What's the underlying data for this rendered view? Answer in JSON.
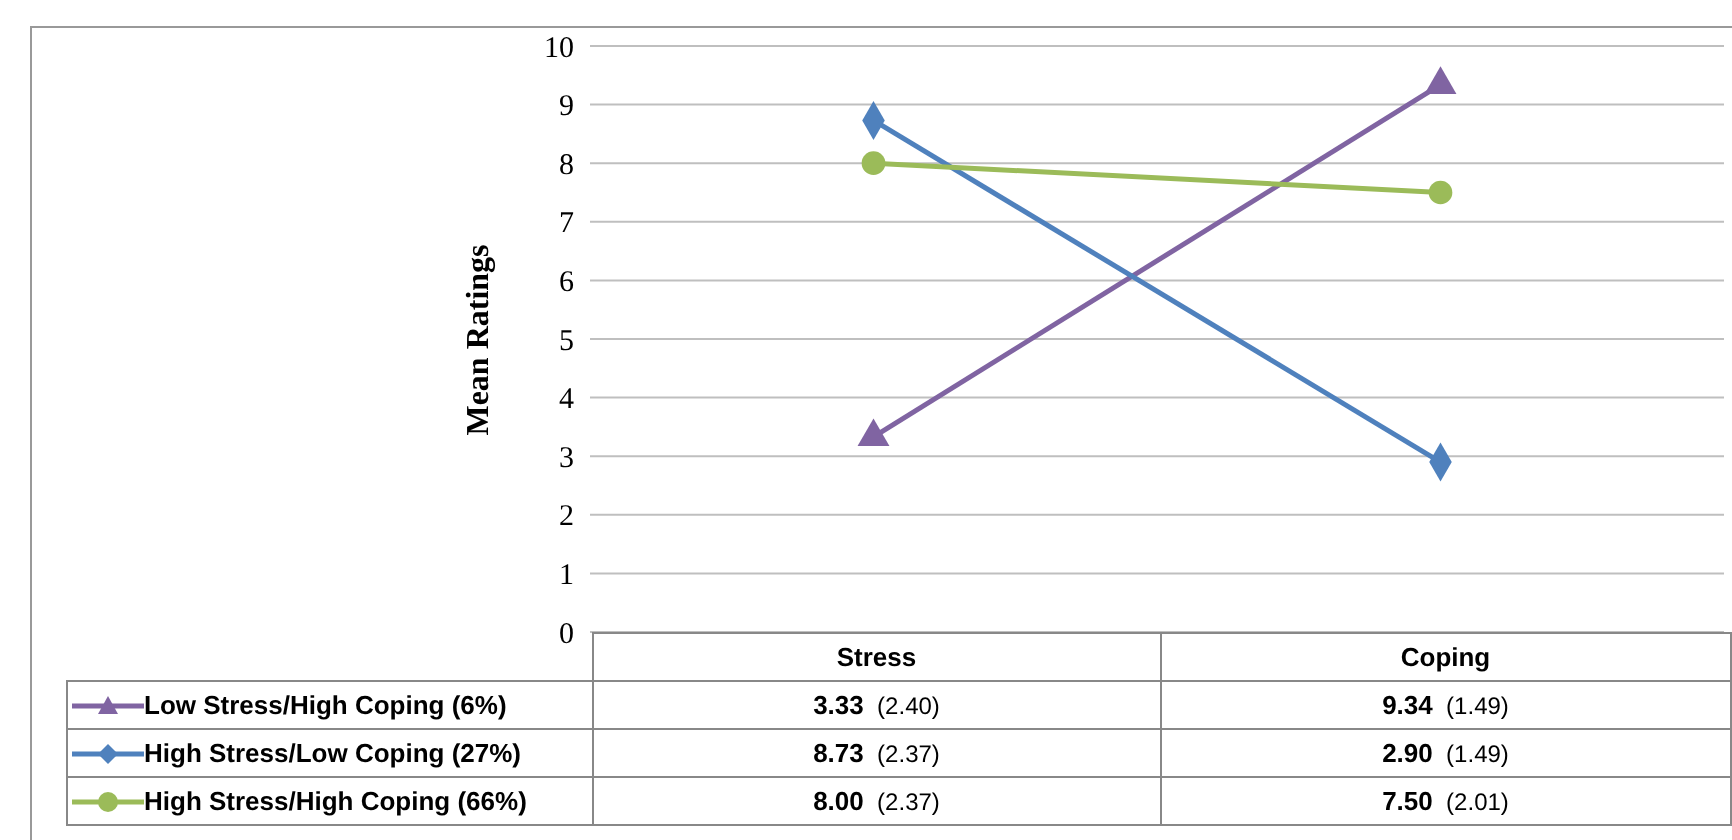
{
  "chart_data": {
    "type": "line",
    "ylabel": "Mean Ratings",
    "categories": [
      "Stress",
      "Coping"
    ],
    "ylim": [
      0,
      10
    ],
    "yticks": [
      0,
      1,
      2,
      3,
      4,
      5,
      6,
      7,
      8,
      9,
      10
    ],
    "grid": "y",
    "legend": "bottom",
    "line_style": "solid",
    "series": [
      {
        "name": "Low Stress/High Coping (6%)",
        "color": "#8064a2",
        "marker": "triangle",
        "values": [
          3.33,
          9.34
        ],
        "value_labels": [
          "3.33 (2.40)",
          "9.34 (1.49)"
        ]
      },
      {
        "name": "High Stress/Low Coping (27%)",
        "color": "#4f81bd",
        "marker": "diamond",
        "values": [
          8.73,
          2.9
        ],
        "value_labels": [
          "8.73 (2.37)",
          "2.90 (1.49)"
        ]
      },
      {
        "name": "High Stress/High Coping (66%)",
        "color": "#9bbb59",
        "marker": "circle",
        "values": [
          8,
          7.5
        ],
        "value_labels": [
          "8.00 (2.37)",
          "7.50 (2.01)"
        ]
      }
    ]
  }
}
